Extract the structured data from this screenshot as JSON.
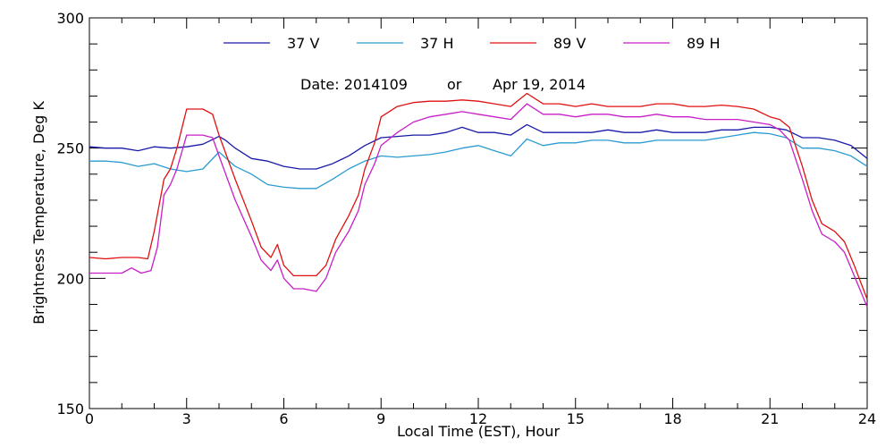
{
  "chart_data": {
    "type": "line",
    "xlabel": "Local Time (EST), Hour",
    "ylabel": "Brightness Temperature, Deg K",
    "xlim": [
      0,
      24
    ],
    "ylim": [
      150,
      300
    ],
    "x_ticks": [
      "0",
      "3",
      "6",
      "9",
      "12",
      "15",
      "18",
      "21",
      "24"
    ],
    "y_ticks": [
      "150",
      "200",
      "250",
      "300"
    ],
    "grid": false,
    "legend_placement": "top",
    "date_label": {
      "part1": "Date: 2014109",
      "part2": "or",
      "part3": "Apr 19, 2014"
    },
    "series": [
      {
        "name": "37 V",
        "color": "#1a1aa8",
        "points": [
          [
            0,
            250.5
          ],
          [
            0.5,
            250
          ],
          [
            1,
            250
          ],
          [
            1.5,
            249
          ],
          [
            2,
            250.5
          ],
          [
            2.5,
            250
          ],
          [
            3,
            250.5
          ],
          [
            3.5,
            251.5
          ],
          [
            4,
            254.5
          ],
          [
            4.2,
            253
          ],
          [
            4.5,
            250
          ],
          [
            5,
            246
          ],
          [
            5.5,
            245
          ],
          [
            6,
            243
          ],
          [
            6.5,
            242
          ],
          [
            7,
            242
          ],
          [
            7.5,
            244
          ],
          [
            8,
            247
          ],
          [
            8.5,
            251
          ],
          [
            9,
            254
          ],
          [
            9.5,
            254.5
          ],
          [
            10,
            255
          ],
          [
            10.5,
            255
          ],
          [
            11,
            256
          ],
          [
            11.5,
            258
          ],
          [
            12,
            256
          ],
          [
            12.5,
            256
          ],
          [
            13,
            255
          ],
          [
            13.5,
            259
          ],
          [
            14,
            256
          ],
          [
            14.5,
            256
          ],
          [
            15,
            256
          ],
          [
            15.5,
            256
          ],
          [
            16,
            257
          ],
          [
            16.5,
            256
          ],
          [
            17,
            256
          ],
          [
            17.5,
            257
          ],
          [
            18,
            256
          ],
          [
            18.5,
            256
          ],
          [
            19,
            256
          ],
          [
            19.5,
            257
          ],
          [
            20,
            257
          ],
          [
            20.5,
            258
          ],
          [
            21,
            258
          ],
          [
            21.5,
            257
          ],
          [
            22,
            254
          ],
          [
            22.5,
            254
          ],
          [
            23,
            253
          ],
          [
            23.5,
            251
          ],
          [
            24,
            246
          ]
        ]
      },
      {
        "name": "37 H",
        "color": "#2a9bd1",
        "points": [
          [
            0,
            245
          ],
          [
            0.5,
            245
          ],
          [
            1,
            244.5
          ],
          [
            1.5,
            243
          ],
          [
            2,
            244
          ],
          [
            2.5,
            242
          ],
          [
            3,
            241
          ],
          [
            3.5,
            242
          ],
          [
            4,
            248.5
          ],
          [
            4.5,
            243
          ],
          [
            5,
            240
          ],
          [
            5.5,
            236
          ],
          [
            6,
            235
          ],
          [
            6.5,
            234.5
          ],
          [
            7,
            234.5
          ],
          [
            7.5,
            238
          ],
          [
            8,
            242
          ],
          [
            8.5,
            245
          ],
          [
            9,
            247
          ],
          [
            9.5,
            246.5
          ],
          [
            10,
            247
          ],
          [
            10.5,
            247.5
          ],
          [
            11,
            248.5
          ],
          [
            11.5,
            250
          ],
          [
            12,
            251
          ],
          [
            12.5,
            249
          ],
          [
            13,
            247
          ],
          [
            13.5,
            253.5
          ],
          [
            14,
            251
          ],
          [
            14.5,
            252
          ],
          [
            15,
            252
          ],
          [
            15.5,
            253
          ],
          [
            16,
            253
          ],
          [
            16.5,
            252
          ],
          [
            17,
            252
          ],
          [
            17.5,
            253
          ],
          [
            18,
            253
          ],
          [
            18.5,
            253
          ],
          [
            19,
            253
          ],
          [
            19.5,
            254
          ],
          [
            20,
            255
          ],
          [
            20.5,
            256
          ],
          [
            21,
            255.5
          ],
          [
            21.5,
            254
          ],
          [
            22,
            250
          ],
          [
            22.5,
            250
          ],
          [
            23,
            249
          ],
          [
            23.5,
            247
          ],
          [
            24,
            243
          ]
        ]
      },
      {
        "name": "89 V",
        "color": "#e01010",
        "points": [
          [
            0,
            208
          ],
          [
            0.5,
            207.5
          ],
          [
            1,
            208
          ],
          [
            1.5,
            208
          ],
          [
            1.8,
            207.5
          ],
          [
            2,
            218
          ],
          [
            2.3,
            238
          ],
          [
            2.5,
            242
          ],
          [
            2.7,
            250
          ],
          [
            3,
            265
          ],
          [
            3.5,
            265
          ],
          [
            3.8,
            263
          ],
          [
            4,
            255
          ],
          [
            4.5,
            238
          ],
          [
            5,
            222
          ],
          [
            5.3,
            212
          ],
          [
            5.6,
            208
          ],
          [
            5.8,
            213
          ],
          [
            6,
            205
          ],
          [
            6.3,
            201
          ],
          [
            6.6,
            201
          ],
          [
            7,
            201
          ],
          [
            7.3,
            205
          ],
          [
            7.6,
            215
          ],
          [
            8,
            224
          ],
          [
            8.3,
            232
          ],
          [
            8.5,
            242
          ],
          [
            8.8,
            252
          ],
          [
            9,
            262
          ],
          [
            9.5,
            266
          ],
          [
            10,
            267.5
          ],
          [
            10.5,
            268
          ],
          [
            11,
            268
          ],
          [
            11.5,
            268.5
          ],
          [
            12,
            268
          ],
          [
            12.5,
            267
          ],
          [
            13,
            266
          ],
          [
            13.5,
            271
          ],
          [
            14,
            267
          ],
          [
            14.5,
            267
          ],
          [
            15,
            266
          ],
          [
            15.5,
            267
          ],
          [
            16,
            266
          ],
          [
            16.5,
            266
          ],
          [
            17,
            266
          ],
          [
            17.5,
            267
          ],
          [
            18,
            267
          ],
          [
            18.5,
            266
          ],
          [
            19,
            266
          ],
          [
            19.5,
            266.5
          ],
          [
            20,
            266
          ],
          [
            20.5,
            265
          ],
          [
            21,
            262
          ],
          [
            21.3,
            261
          ],
          [
            21.6,
            258
          ],
          [
            22,
            243
          ],
          [
            22.3,
            230
          ],
          [
            22.6,
            221
          ],
          [
            23,
            218
          ],
          [
            23.3,
            214
          ],
          [
            23.6,
            205
          ],
          [
            24,
            192
          ]
        ]
      },
      {
        "name": "89 H",
        "color": "#c81ec8",
        "points": [
          [
            0,
            202
          ],
          [
            0.5,
            202
          ],
          [
            1,
            202
          ],
          [
            1.3,
            204
          ],
          [
            1.6,
            202
          ],
          [
            1.9,
            203
          ],
          [
            2.1,
            212
          ],
          [
            2.3,
            232
          ],
          [
            2.5,
            236
          ],
          [
            2.7,
            242
          ],
          [
            3,
            255
          ],
          [
            3.5,
            255
          ],
          [
            3.8,
            254
          ],
          [
            4,
            247
          ],
          [
            4.5,
            230
          ],
          [
            5,
            216
          ],
          [
            5.3,
            207
          ],
          [
            5.6,
            203
          ],
          [
            5.8,
            207
          ],
          [
            6,
            200
          ],
          [
            6.3,
            196
          ],
          [
            6.6,
            196
          ],
          [
            7,
            195
          ],
          [
            7.3,
            200
          ],
          [
            7.6,
            210
          ],
          [
            8,
            218
          ],
          [
            8.3,
            226
          ],
          [
            8.5,
            236
          ],
          [
            8.8,
            244
          ],
          [
            9,
            251
          ],
          [
            9.5,
            256
          ],
          [
            10,
            260
          ],
          [
            10.5,
            262
          ],
          [
            11,
            263
          ],
          [
            11.5,
            264
          ],
          [
            12,
            263
          ],
          [
            12.5,
            262
          ],
          [
            13,
            261
          ],
          [
            13.5,
            267
          ],
          [
            14,
            263
          ],
          [
            14.5,
            263
          ],
          [
            15,
            262
          ],
          [
            15.5,
            263
          ],
          [
            16,
            263
          ],
          [
            16.5,
            262
          ],
          [
            17,
            262
          ],
          [
            17.5,
            263
          ],
          [
            18,
            262
          ],
          [
            18.5,
            262
          ],
          [
            19,
            261
          ],
          [
            19.5,
            261
          ],
          [
            20,
            261
          ],
          [
            20.5,
            260
          ],
          [
            21,
            259
          ],
          [
            21.3,
            257
          ],
          [
            21.6,
            253
          ],
          [
            22,
            238
          ],
          [
            22.3,
            226
          ],
          [
            22.6,
            217
          ],
          [
            23,
            214
          ],
          [
            23.3,
            210
          ],
          [
            23.6,
            201
          ],
          [
            24,
            189
          ]
        ]
      }
    ]
  }
}
